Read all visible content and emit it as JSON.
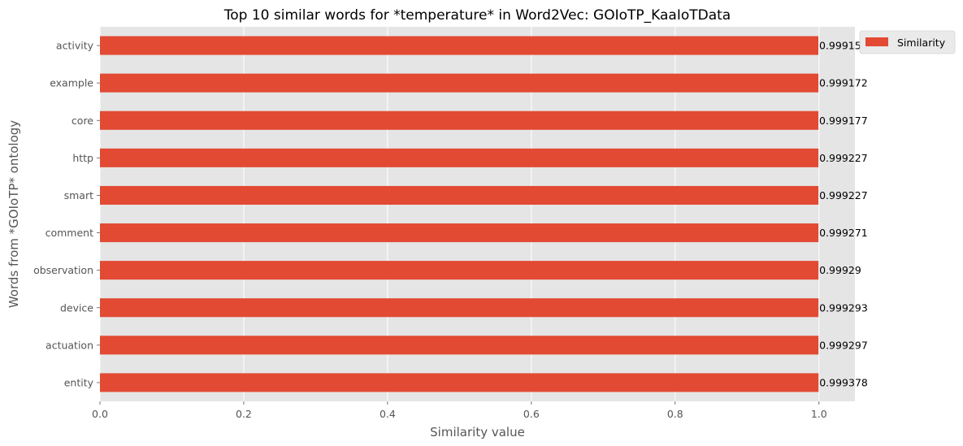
{
  "chart_data": {
    "type": "bar",
    "orientation": "horizontal",
    "title": "Top 10 similar words for *temperature* in Word2Vec: GOIoTP_KaaIoTData",
    "xlabel": "Similarity value",
    "ylabel": "Words from *GOIoTP* ontology",
    "categories": [
      "entity",
      "actuation",
      "device",
      "observation",
      "comment",
      "smart",
      "http",
      "core",
      "example",
      "activity"
    ],
    "series": [
      {
        "name": "Similarity",
        "values": [
          0.999378,
          0.999297,
          0.999293,
          0.99929,
          0.999271,
          0.999227,
          0.999227,
          0.999177,
          0.999172,
          0.99915
        ],
        "labels": [
          "0.999378",
          "0.999297",
          "0.999293",
          "0.99929",
          "0.999271",
          "0.999227",
          "0.999227",
          "0.999177",
          "0.999172",
          "0.99915"
        ]
      }
    ],
    "xlim": [
      0,
      1.05
    ],
    "xticks": [
      0.0,
      0.2,
      0.4,
      0.6,
      0.8,
      1.0
    ],
    "xtick_labels": [
      "0.0",
      "0.2",
      "0.4",
      "0.6",
      "0.8",
      "1.0"
    ],
    "grid": true,
    "legend_position": "top-right",
    "colors": {
      "bar": "#e24a33",
      "plot_background": "#e5e5e5",
      "grid": "#ffffff",
      "tick_text": "#555555"
    }
  }
}
